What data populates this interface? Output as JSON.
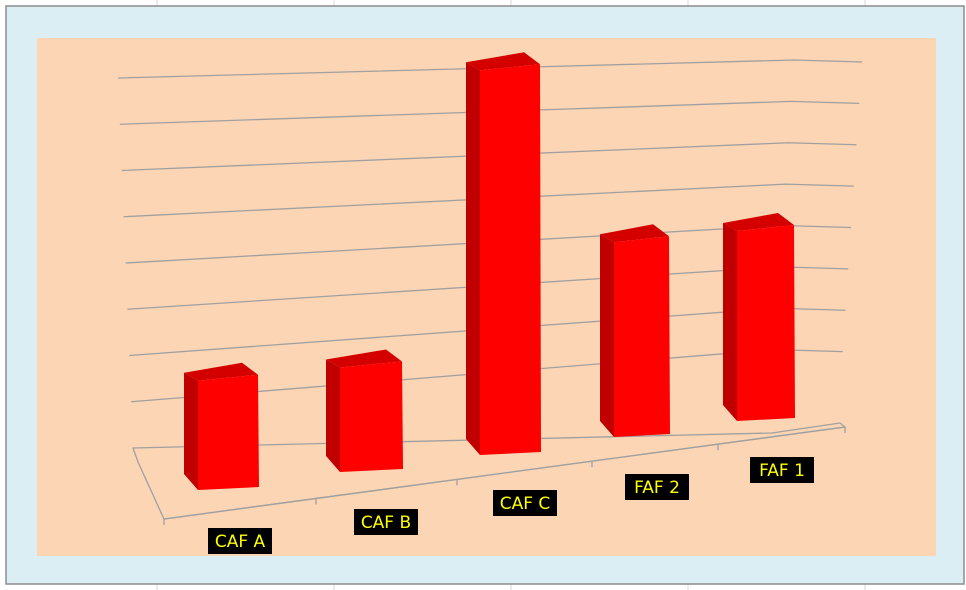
{
  "colors": {
    "outer_frame": "#daeef3",
    "plot_area": "#fcd5b5",
    "bar_front": "#ff0000",
    "bar_side": "#c00000",
    "bar_top": "#d40000",
    "gridline": "#a0a0a0",
    "label_bg": "#000000",
    "label_text": "#ffff00"
  },
  "chart_data": {
    "type": "bar",
    "style": "3d-column",
    "categories": [
      "CAF A",
      "CAF B",
      "CAF C",
      "FAF 2",
      "FAF 1"
    ],
    "values": [
      2.3,
      2.2,
      8.1,
      4.1,
      4.0
    ],
    "title": "",
    "xlabel": "",
    "ylabel": "",
    "ylim": [
      0,
      8
    ],
    "grid": true,
    "legend": "none",
    "tick_labels_y": "hidden"
  }
}
